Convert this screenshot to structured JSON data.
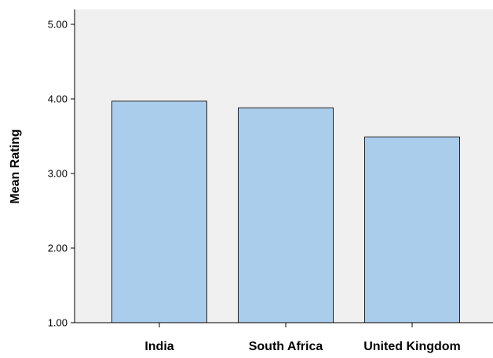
{
  "chart_data": {
    "type": "bar",
    "title": "",
    "xlabel": "",
    "ylabel": "Mean Rating",
    "categories": [
      "India",
      "South Africa",
      "United Kingdom"
    ],
    "values": [
      3.97,
      3.88,
      3.49
    ],
    "ylim": [
      1.0,
      5.2
    ],
    "yticks": [
      1.0,
      2.0,
      3.0,
      4.0,
      5.0
    ],
    "ytick_labels": [
      "1.00",
      "2.00",
      "3.00",
      "4.00",
      "5.00"
    ],
    "grid": false,
    "legend": "none",
    "colors": {
      "bar_fill": "#abcdec",
      "bar_stroke": "#222222",
      "plot_background": "#f0f0f0",
      "axis": "#000000"
    }
  }
}
